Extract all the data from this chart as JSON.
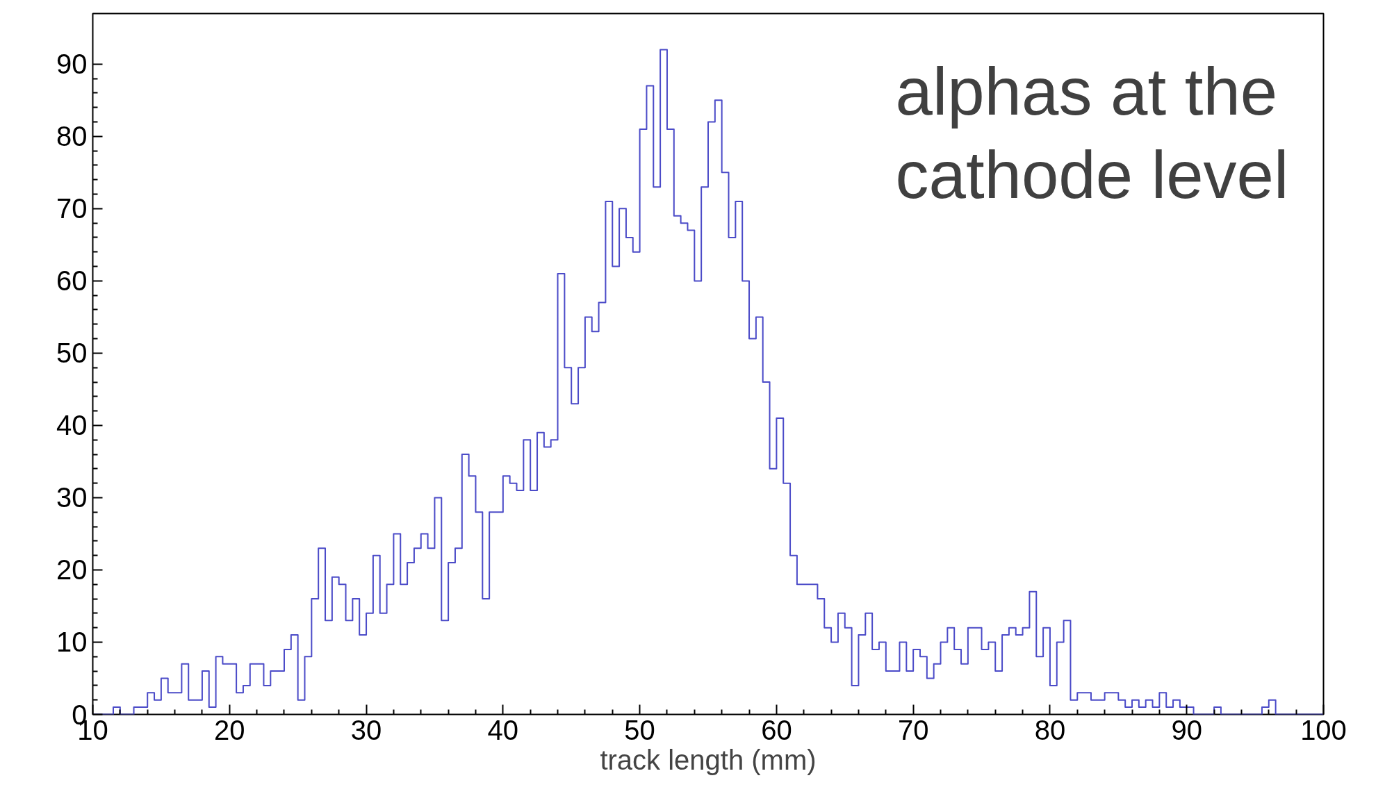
{
  "chart_data": {
    "type": "histogram",
    "xlabel": "track length (mm)",
    "annotations": [
      "alphas at the\ncathode level"
    ],
    "bins": [
      10,
      10.5,
      11,
      11.5,
      12,
      12.5,
      13,
      13.5,
      14,
      14.5,
      15,
      15.5,
      16,
      16.5,
      17,
      17.5,
      18,
      18.5,
      19,
      19.5,
      20,
      20.5,
      21,
      21.5,
      22,
      22.5,
      23,
      23.5,
      24,
      24.5,
      25,
      25.5,
      26,
      26.5,
      27,
      27.5,
      28,
      28.5,
      29,
      29.5,
      30,
      30.5,
      31,
      31.5,
      32,
      32.5,
      33,
      33.5,
      34,
      34.5,
      35,
      35.5,
      36,
      36.5,
      37,
      37.5,
      38,
      38.5,
      39,
      39.5,
      40,
      40.5,
      41,
      41.5,
      42,
      42.5,
      43,
      43.5,
      44,
      44.5,
      45,
      45.5,
      46,
      46.5,
      47,
      47.5,
      48,
      48.5,
      49,
      49.5,
      50,
      50.5,
      51,
      51.5,
      52,
      52.5,
      53,
      53.5,
      54,
      54.5,
      55,
      55.5,
      56,
      56.5,
      57,
      57.5,
      58,
      58.5,
      59,
      59.5,
      60,
      60.5,
      61,
      61.5,
      62,
      62.5,
      63,
      63.5,
      64,
      64.5,
      65,
      65.5,
      66,
      66.5,
      67,
      67.5,
      68,
      68.5,
      69,
      69.5,
      70,
      70.5,
      71,
      71.5,
      72,
      72.5,
      73,
      73.5,
      74,
      74.5,
      75,
      75.5,
      76,
      76.5,
      77,
      77.5,
      78,
      78.5,
      79,
      79.5,
      80,
      80.5,
      81,
      81.5,
      82,
      82.5,
      83,
      83.5,
      84,
      84.5,
      85,
      85.5,
      86,
      86.5,
      87,
      87.5,
      88,
      88.5,
      89,
      89.5,
      90,
      90.5,
      91,
      91.5,
      92,
      92.5,
      93,
      93.5,
      94,
      94.5,
      95,
      95.5,
      96,
      96.5,
      97,
      97.5,
      98,
      98.5,
      99,
      99.5,
      100
    ],
    "values": [
      0,
      0,
      0,
      1,
      0,
      0,
      1,
      1,
      3,
      2,
      5,
      3,
      3,
      7,
      2,
      2,
      6,
      1,
      8,
      7,
      7,
      3,
      4,
      7,
      7,
      4,
      6,
      6,
      9,
      11,
      2,
      8,
      16,
      23,
      13,
      19,
      18,
      13,
      16,
      11,
      14,
      22,
      14,
      18,
      25,
      18,
      21,
      23,
      25,
      23,
      30,
      13,
      21,
      23,
      36,
      33,
      28,
      16,
      28,
      28,
      33,
      32,
      31,
      38,
      31,
      39,
      37,
      38,
      61,
      48,
      43,
      48,
      55,
      53,
      57,
      71,
      62,
      70,
      66,
      64,
      81,
      87,
      73,
      92,
      81,
      69,
      68,
      67,
      60,
      73,
      82,
      85,
      75,
      66,
      71,
      60,
      52,
      55,
      46,
      34,
      41,
      32,
      22,
      18,
      18,
      18,
      16,
      12,
      10,
      14,
      12,
      4,
      11,
      14,
      9,
      10,
      6,
      6,
      10,
      6,
      9,
      8,
      5,
      7,
      10,
      12,
      9,
      7,
      12,
      12,
      9,
      10,
      6,
      11,
      12,
      11,
      12,
      17,
      8,
      12,
      4,
      10,
      13,
      2,
      3,
      3,
      2,
      2,
      3,
      3,
      2,
      1,
      2,
      1,
      2,
      1,
      3,
      1,
      2,
      1,
      1,
      0,
      0,
      0,
      1,
      0,
      0,
      0,
      0,
      0,
      0,
      1,
      2,
      0,
      0,
      0,
      0,
      0,
      0,
      0
    ],
    "color": "#4b4bc8",
    "xlim": [
      10,
      100
    ],
    "ylim": [
      0,
      97
    ],
    "xticks": [
      10,
      20,
      30,
      40,
      50,
      60,
      70,
      80,
      90,
      100
    ],
    "yticks": [
      0,
      10,
      20,
      30,
      40,
      50,
      60,
      70,
      80,
      90
    ],
    "grid": false
  }
}
